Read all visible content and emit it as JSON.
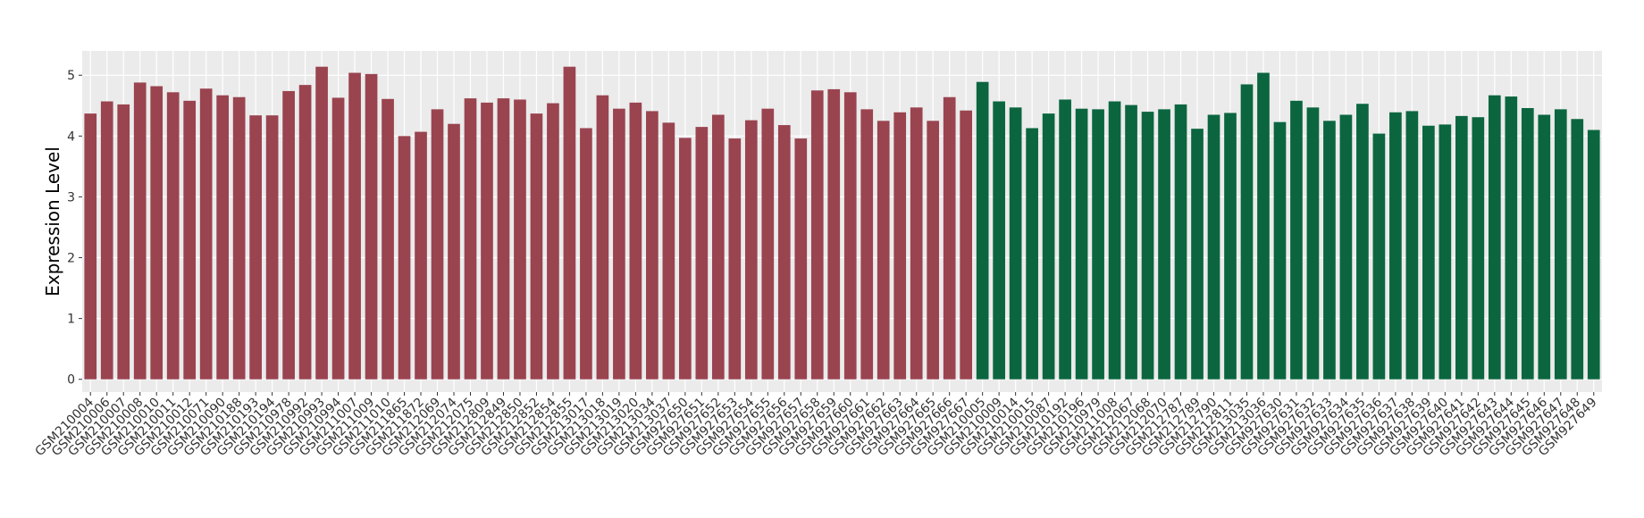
{
  "chart_data": {
    "type": "bar",
    "ylabel": "Expression Level",
    "categories": [
      "GSM210004",
      "GSM210006",
      "GSM210007",
      "GSM210008",
      "GSM210010",
      "GSM210011",
      "GSM210012",
      "GSM210071",
      "GSM210090",
      "GSM210188",
      "GSM210193",
      "GSM210194",
      "GSM210978",
      "GSM210992",
      "GSM210993",
      "GSM210994",
      "GSM211007",
      "GSM211009",
      "GSM211010",
      "GSM211865",
      "GSM211872",
      "GSM212069",
      "GSM212074",
      "GSM212075",
      "GSM212809",
      "GSM212849",
      "GSM212850",
      "GSM212852",
      "GSM212854",
      "GSM212855",
      "GSM213017",
      "GSM213018",
      "GSM213019",
      "GSM213020",
      "GSM213034",
      "GSM213037",
      "GSM927650",
      "GSM927651",
      "GSM927652",
      "GSM927653",
      "GSM927654",
      "GSM927655",
      "GSM927656",
      "GSM927657",
      "GSM927658",
      "GSM927659",
      "GSM927660",
      "GSM927661",
      "GSM927662",
      "GSM927663",
      "GSM927664",
      "GSM927665",
      "GSM927666",
      "GSM927667",
      "GSM210005",
      "GSM210009",
      "GSM210014",
      "GSM210015",
      "GSM210087",
      "GSM210192",
      "GSM210196",
      "GSM210979",
      "GSM211008",
      "GSM212067",
      "GSM212068",
      "GSM212070",
      "GSM212787",
      "GSM212789",
      "GSM212790",
      "GSM212811",
      "GSM213035",
      "GSM213036",
      "GSM927630",
      "GSM927631",
      "GSM927632",
      "GSM927633",
      "GSM927634",
      "GSM927635",
      "GSM927636",
      "GSM927637",
      "GSM927638",
      "GSM927639",
      "GSM927640",
      "GSM927641",
      "GSM927642",
      "GSM927643",
      "GSM927644",
      "GSM927645",
      "GSM927646",
      "GSM927647",
      "GSM927648",
      "GSM927649"
    ],
    "values": [
      4.37,
      4.57,
      4.52,
      4.88,
      4.82,
      4.72,
      4.58,
      4.78,
      4.67,
      4.64,
      4.34,
      4.34,
      4.74,
      4.84,
      5.14,
      4.63,
      5.04,
      5.02,
      4.61,
      4.0,
      4.07,
      4.44,
      4.2,
      4.62,
      4.55,
      4.62,
      4.6,
      4.37,
      4.54,
      5.14,
      4.13,
      4.67,
      4.45,
      4.55,
      4.41,
      4.22,
      3.97,
      4.15,
      4.35,
      3.96,
      4.26,
      4.45,
      4.18,
      3.96,
      4.75,
      4.77,
      4.72,
      4.44,
      4.25,
      4.39,
      4.47,
      4.25,
      4.64,
      4.42,
      4.89,
      4.57,
      4.47,
      4.13,
      4.37,
      4.6,
      4.45,
      4.44,
      4.57,
      4.51,
      4.4,
      4.44,
      4.52,
      4.12,
      4.35,
      4.38,
      4.85,
      5.04,
      4.23,
      4.58,
      4.47,
      4.25,
      4.35,
      4.53,
      4.04,
      4.39,
      4.41,
      4.17,
      4.19,
      4.33,
      4.31,
      4.67,
      4.65,
      4.46,
      4.35,
      4.44,
      4.28,
      4.1
    ],
    "colors": [
      "#9a4450",
      "#9a4450",
      "#9a4450",
      "#9a4450",
      "#9a4450",
      "#9a4450",
      "#9a4450",
      "#9a4450",
      "#9a4450",
      "#9a4450",
      "#9a4450",
      "#9a4450",
      "#9a4450",
      "#9a4450",
      "#9a4450",
      "#9a4450",
      "#9a4450",
      "#9a4450",
      "#9a4450",
      "#9a4450",
      "#9a4450",
      "#9a4450",
      "#9a4450",
      "#9a4450",
      "#9a4450",
      "#9a4450",
      "#9a4450",
      "#9a4450",
      "#9a4450",
      "#9a4450",
      "#9a4450",
      "#9a4450",
      "#9a4450",
      "#9a4450",
      "#9a4450",
      "#9a4450",
      "#9a4450",
      "#9a4450",
      "#9a4450",
      "#9a4450",
      "#9a4450",
      "#9a4450",
      "#9a4450",
      "#9a4450",
      "#9a4450",
      "#9a4450",
      "#9a4450",
      "#9a4450",
      "#9a4450",
      "#9a4450",
      "#9a4450",
      "#9a4450",
      "#9a4450",
      "#9a4450",
      "#0b6640",
      "#0b6640",
      "#0b6640",
      "#0b6640",
      "#0b6640",
      "#0b6640",
      "#0b6640",
      "#0b6640",
      "#0b6640",
      "#0b6640",
      "#0b6640",
      "#0b6640",
      "#0b6640",
      "#0b6640",
      "#0b6640",
      "#0b6640",
      "#0b6640",
      "#0b6640",
      "#0b6640",
      "#0b6640",
      "#0b6640",
      "#0b6640",
      "#0b6640",
      "#0b6640",
      "#0b6640",
      "#0b6640",
      "#0b6640",
      "#0b6640",
      "#0b6640",
      "#0b6640",
      "#0b6640",
      "#0b6640",
      "#0b6640",
      "#0b6640",
      "#0b6640",
      "#0b6640",
      "#0b6640",
      "#0b6640"
    ],
    "ylim": [
      -0.21,
      5.4
    ],
    "yticks": [
      0,
      1,
      2,
      3,
      4,
      5
    ],
    "grid": true
  }
}
